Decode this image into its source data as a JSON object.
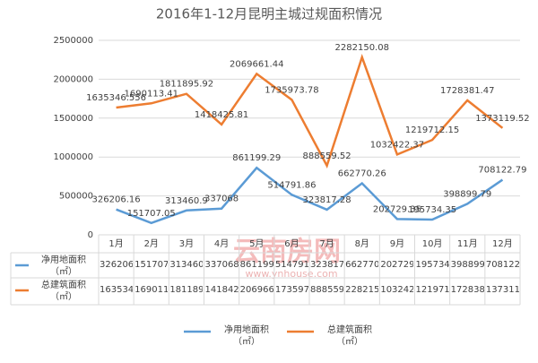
{
  "chart_data": {
    "type": "line",
    "title": "2016年1-12月昆明主城过规面积情况",
    "categories": [
      "1月",
      "2月",
      "3月",
      "4月",
      "5月",
      "6月",
      "7月",
      "8月",
      "9月",
      "10月",
      "11月",
      "12月"
    ],
    "series": [
      {
        "name": "净用地面积（㎡）",
        "color": "#5b9bd5",
        "values": [
          326206.16,
          151707.05,
          313460.9,
          337068,
          861199.29,
          514791.86,
          323817.28,
          662770.26,
          202729.35,
          195734.35,
          398899.79,
          708122.79
        ]
      },
      {
        "name": "总建筑面积（㎡）",
        "color": "#ed7d31",
        "values": [
          1635346.556,
          1690113.41,
          1811895.92,
          1418425.81,
          2069661.44,
          1735973.78,
          888559.52,
          2282150.08,
          1032422.37,
          1219712.15,
          1728381.47,
          1373119.52
        ]
      }
    ],
    "ylim": [
      0,
      2500000
    ],
    "yticks": [
      0,
      500000,
      1000000,
      1500000,
      2000000,
      2500000
    ],
    "grid": true,
    "legend": "bottom",
    "annotations": [
      "云南房网",
      "www.ynhouse.com"
    ]
  }
}
